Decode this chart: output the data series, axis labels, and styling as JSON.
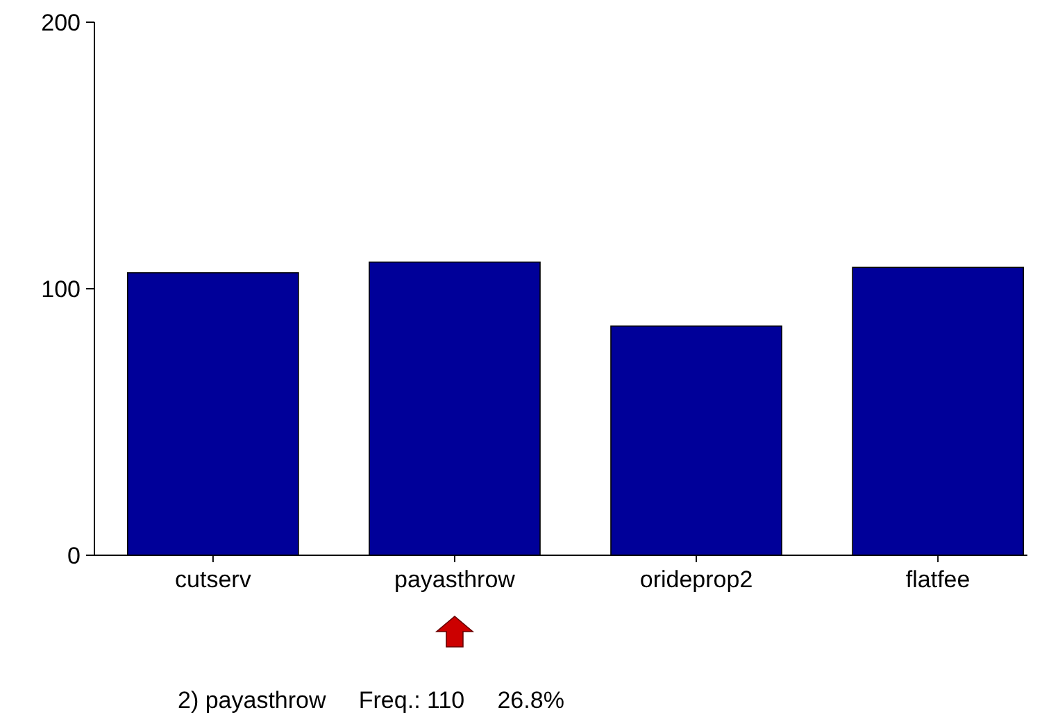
{
  "chart_data": {
    "type": "bar",
    "categories": [
      "cutserv",
      "payasthrow",
      "orideprop2",
      "flatfee"
    ],
    "values": [
      106,
      110,
      86,
      108
    ],
    "color": "#000099",
    "ylim": [
      0,
      200
    ],
    "yticks": [
      0,
      100,
      200
    ],
    "grid": false,
    "annotations": [
      "2) payasthrow     Freq.: 110     26.8%"
    ]
  }
}
